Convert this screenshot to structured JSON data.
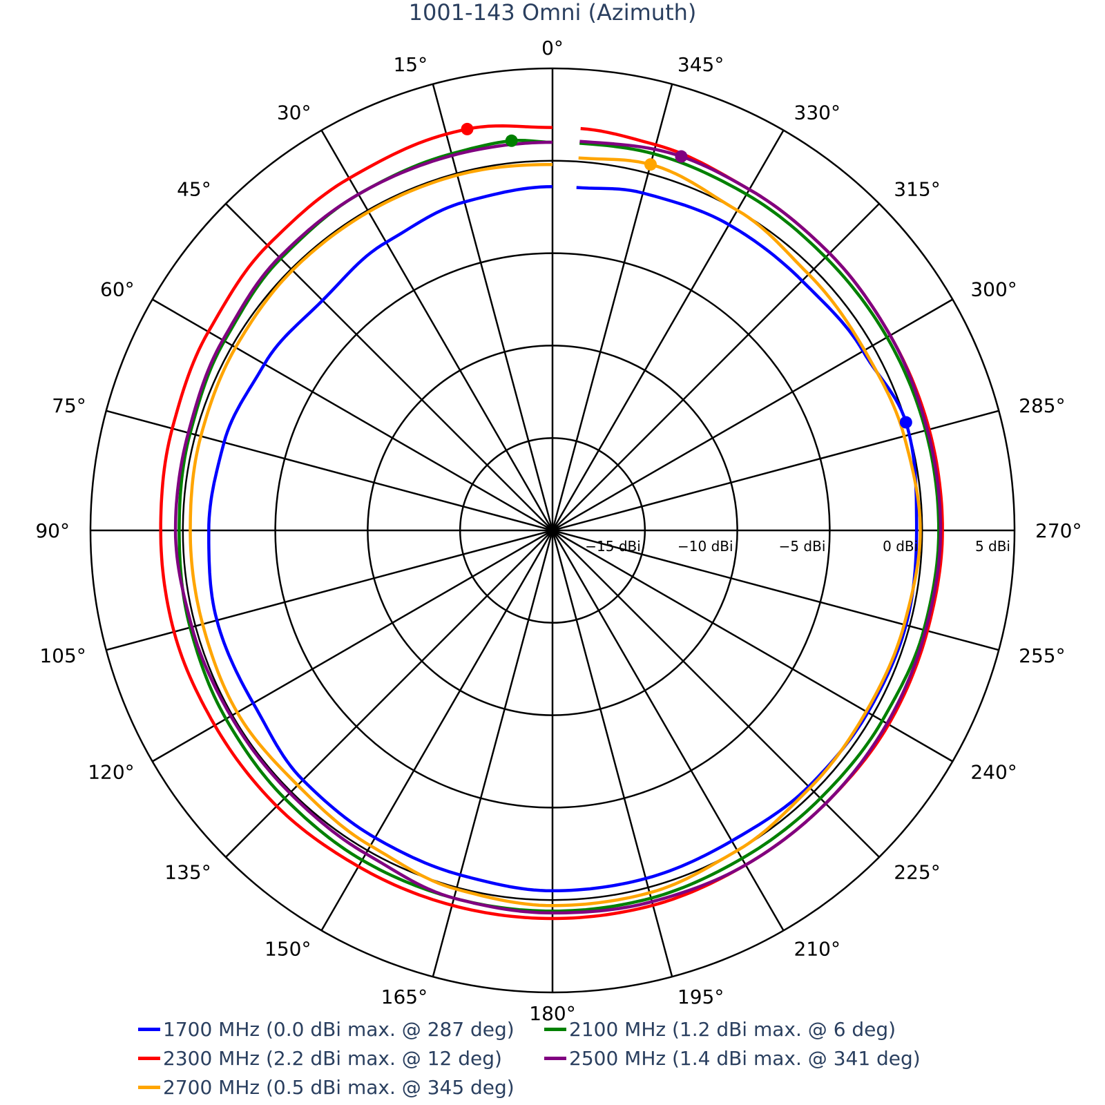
{
  "chart_data": {
    "type": "line",
    "subtype": "polar",
    "title": "1001-143 Omni (Azimuth)",
    "angular_axis": {
      "direction": "counterclockwise",
      "rotation_zero": "top",
      "ticks_deg": [
        0,
        15,
        30,
        45,
        60,
        75,
        90,
        105,
        120,
        135,
        150,
        165,
        180,
        195,
        210,
        225,
        240,
        255,
        270,
        285,
        300,
        315,
        330,
        345
      ],
      "tick_labels": [
        "0°",
        "15°",
        "30°",
        "45°",
        "60°",
        "75°",
        "90°",
        "105°",
        "120°",
        "135°",
        "150°",
        "165°",
        "180°",
        "195°",
        "210°",
        "225°",
        "240°",
        "255°",
        "270°",
        "285°",
        "300°",
        "315°",
        "330°",
        "345°"
      ]
    },
    "radial_axis": {
      "range": [
        -20,
        5
      ],
      "unit": "dBi",
      "ticks": [
        -15,
        -10,
        -5,
        0,
        5
      ],
      "tick_labels": [
        "−15 dBi",
        "−10 dBi",
        "−5 dBi",
        "0 dBi",
        "5 dBi"
      ]
    },
    "grid": true,
    "legend_position": "bottom",
    "series": [
      {
        "name": "1700 MHz (0.0 dBi max. @ 287 deg)",
        "color": "#0000ff",
        "max": {
          "angle": 287,
          "value": 0.0
        },
        "angles": [
          0,
          15,
          30,
          45,
          60,
          75,
          90,
          105,
          120,
          135,
          150,
          165,
          180,
          195,
          210,
          225,
          240,
          255,
          270,
          287,
          300,
          315,
          330,
          345,
          356
        ],
        "values": [
          -1.4,
          -1.6,
          -2.0,
          -2.4,
          -2.0,
          -1.6,
          -1.4,
          -1.2,
          -1.3,
          -0.9,
          -0.8,
          -0.7,
          -0.5,
          -0.5,
          -0.6,
          -0.4,
          -0.3,
          -0.2,
          -0.3,
          0.0,
          -0.6,
          -0.9,
          -0.9,
          -1.1,
          -1.4
        ]
      },
      {
        "name": "2100 MHz (1.2 dBi max. @ 6 deg)",
        "color": "#008000",
        "max": {
          "angle": 6,
          "value": 1.2
        },
        "angles": [
          0,
          6,
          15,
          30,
          45,
          60,
          75,
          90,
          105,
          120,
          135,
          150,
          165,
          180,
          195,
          210,
          225,
          240,
          255,
          270,
          285,
          300,
          315,
          330,
          345,
          356
        ],
        "values": [
          1.0,
          1.2,
          1.1,
          1.0,
          0.8,
          0.5,
          0.3,
          0.2,
          0.3,
          0.4,
          0.5,
          0.6,
          0.6,
          0.6,
          0.6,
          0.5,
          0.5,
          0.6,
          0.8,
          0.9,
          0.9,
          0.9,
          0.9,
          1.0,
          1.1,
          1.0
        ]
      },
      {
        "name": "2300 MHz (2.2 dBi max. @ 12 deg)",
        "color": "#ff0000",
        "max": {
          "angle": 12,
          "value": 2.2
        },
        "angles": [
          0,
          12,
          15,
          30,
          45,
          60,
          75,
          90,
          105,
          120,
          135,
          150,
          165,
          180,
          195,
          210,
          225,
          240,
          255,
          270,
          285,
          300,
          315,
          330,
          345,
          356
        ],
        "values": [
          1.8,
          2.2,
          2.2,
          2.0,
          1.8,
          1.5,
          1.3,
          1.2,
          1.2,
          1.1,
          1.1,
          1.0,
          1.0,
          1.0,
          1.0,
          0.9,
          0.9,
          1.0,
          1.0,
          1.1,
          1.1,
          1.1,
          1.2,
          1.3,
          1.6,
          1.8
        ]
      },
      {
        "name": "2500 MHz (1.4 dBi max. @ 341 deg)",
        "color": "#800080",
        "max": {
          "angle": 341,
          "value": 1.4
        },
        "angles": [
          0,
          15,
          30,
          45,
          60,
          75,
          90,
          105,
          120,
          135,
          150,
          165,
          180,
          195,
          210,
          225,
          240,
          255,
          270,
          285,
          300,
          315,
          330,
          341,
          356
        ],
        "values": [
          1.0,
          1.0,
          1.0,
          0.9,
          0.6,
          0.4,
          0.4,
          0.2,
          0.1,
          0.1,
          0.2,
          0.6,
          0.7,
          0.8,
          0.9,
          0.9,
          0.9,
          0.9,
          1.0,
          1.0,
          1.1,
          1.2,
          1.3,
          1.4,
          1.1
        ]
      },
      {
        "name": "2700 MHz (0.5 dBi max. @ 345 deg)",
        "color": "#ffa500",
        "max": {
          "angle": 345,
          "value": 0.5
        },
        "angles": [
          0,
          15,
          30,
          45,
          60,
          75,
          90,
          105,
          120,
          135,
          150,
          165,
          180,
          195,
          210,
          225,
          240,
          255,
          270,
          285,
          300,
          315,
          330,
          345,
          356
        ],
        "values": [
          -0.2,
          -0.1,
          -0.1,
          -0.1,
          -0.2,
          -0.3,
          -0.4,
          -0.4,
          -0.3,
          -0.5,
          -0.3,
          0.1,
          0.3,
          0.3,
          0.0,
          -0.3,
          -0.4,
          -0.3,
          -0.1,
          -0.3,
          -0.5,
          -0.4,
          0.0,
          0.5,
          0.2
        ]
      }
    ]
  },
  "legend": {
    "items": [
      {
        "label": "1700 MHz (0.0 dBi max. @ 287 deg)",
        "color": "#0000ff"
      },
      {
        "label": "2100 MHz (1.2 dBi max. @ 6 deg)",
        "color": "#008000"
      },
      {
        "label": "2300 MHz (2.2 dBi max. @ 12 deg)",
        "color": "#ff0000"
      },
      {
        "label": "2500 MHz (1.4 dBi max. @ 341 deg)",
        "color": "#800080"
      },
      {
        "label": "2700 MHz (0.5 dBi max. @ 345 deg)",
        "color": "#ffa500"
      }
    ]
  }
}
